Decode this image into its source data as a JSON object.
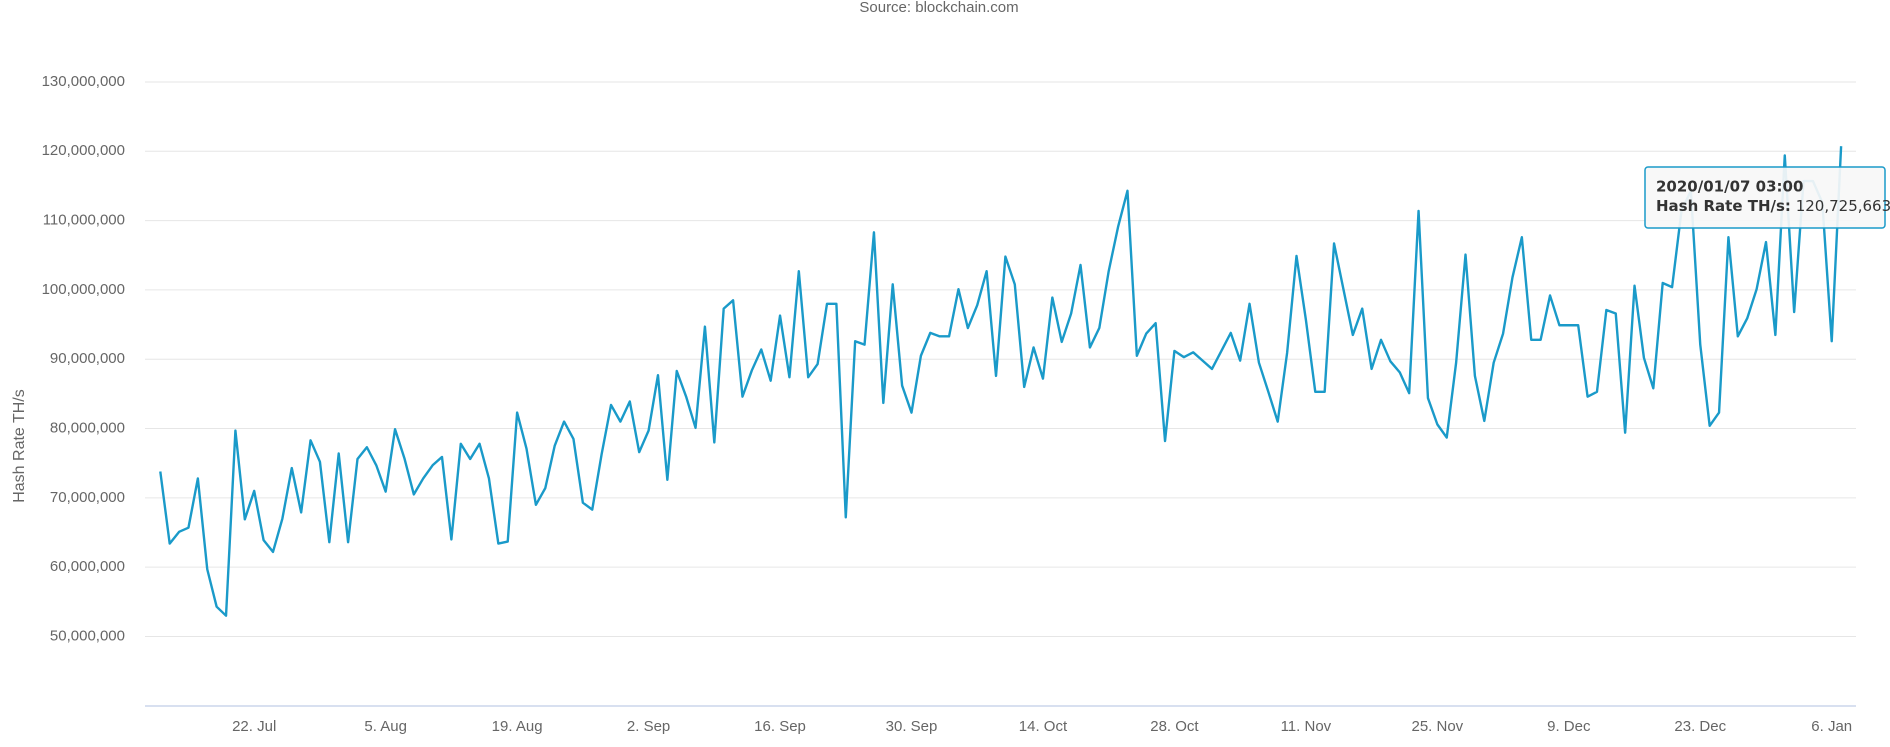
{
  "chart_data": {
    "type": "line",
    "subtitle": "Source: blockchain.com",
    "y_label": "Hash Rate TH/s",
    "color": "#1a9ac9",
    "grid": true,
    "ylim": [
      40000000,
      135000000
    ],
    "yticks": [
      {
        "value": 50000000,
        "label": "50,000,000"
      },
      {
        "value": 60000000,
        "label": "60,000,000"
      },
      {
        "value": 70000000,
        "label": "70,000,000"
      },
      {
        "value": 80000000,
        "label": "80,000,000"
      },
      {
        "value": 90000000,
        "label": "90,000,000"
      },
      {
        "value": 100000000,
        "label": "100,000,000"
      },
      {
        "value": 110000000,
        "label": "110,000,000"
      },
      {
        "value": 120000000,
        "label": "120,000,000"
      },
      {
        "value": 130000000,
        "label": "130,000,000"
      }
    ],
    "categories": [
      null,
      null,
      null,
      null,
      null,
      null,
      null,
      null,
      null,
      null,
      "22. Jul",
      null,
      null,
      null,
      null,
      null,
      null,
      null,
      null,
      null,
      null,
      null,
      null,
      null,
      "5. Aug",
      null,
      null,
      null,
      null,
      null,
      null,
      null,
      null,
      null,
      null,
      null,
      null,
      null,
      "19. Aug",
      null,
      null,
      null,
      null,
      null,
      null,
      null,
      null,
      null,
      null,
      null,
      null,
      null,
      "2. Sep",
      null,
      null,
      null,
      null,
      null,
      null,
      null,
      null,
      null,
      null,
      null,
      null,
      null,
      "16. Sep",
      null,
      null,
      null,
      null,
      null,
      null,
      null,
      null,
      null,
      null,
      null,
      null,
      null,
      "30. Sep",
      null,
      null,
      null,
      null,
      null,
      null,
      null,
      null,
      null,
      null,
      null,
      null,
      null,
      "14. Oct",
      null,
      null,
      null,
      null,
      null,
      null,
      null,
      null,
      null,
      null,
      null,
      null,
      null,
      "28. Oct",
      null,
      null,
      null,
      null,
      null,
      null,
      null,
      null,
      null,
      null,
      null,
      null,
      null,
      "11. Nov",
      null,
      null,
      null,
      null,
      null,
      null,
      null,
      null,
      null,
      null,
      null,
      null,
      null,
      "25. Nov",
      null,
      null,
      null,
      null,
      null,
      null,
      null,
      null,
      null,
      null,
      null,
      null,
      null,
      "9. Dec",
      null,
      null,
      null,
      null,
      null,
      null,
      null,
      null,
      null,
      null,
      null,
      null,
      null,
      "23. Dec",
      null,
      null,
      null,
      null,
      null,
      null,
      null,
      null,
      null,
      null,
      null,
      null,
      null,
      "6. Jan",
      null
    ],
    "values": [
      73800000,
      63400000,
      65100000,
      65700000,
      72800000,
      59700000,
      54300000,
      53000000,
      79700000,
      66900000,
      71000000,
      63900000,
      62200000,
      67000000,
      74300000,
      67900000,
      78300000,
      75200000,
      63600000,
      76400000,
      63600000,
      75600000,
      77300000,
      74700000,
      70900000,
      79900000,
      75700000,
      70500000,
      72800000,
      74700000,
      75900000,
      64000000,
      77800000,
      75600000,
      77800000,
      72800000,
      63400000,
      63700000,
      82300000,
      77100000,
      69000000,
      71400000,
      77500000,
      81000000,
      78500000,
      69300000,
      68300000,
      76300000,
      83400000,
      81000000,
      83900000,
      76600000,
      79700000,
      87700000,
      72600000,
      88300000,
      84600000,
      80100000,
      94700000,
      78000000,
      97300000,
      98500000,
      84600000,
      88400000,
      91400000,
      86900000,
      96300000,
      87400000,
      102700000,
      87400000,
      89300000,
      98000000,
      98000000,
      67200000,
      92600000,
      92100000,
      108300000,
      83700000,
      100800000,
      86200000,
      82300000,
      90500000,
      93800000,
      93300000,
      93300000,
      100100000,
      94500000,
      97800000,
      102700000,
      87600000,
      104800000,
      100800000,
      86000000,
      91700000,
      87200000,
      98900000,
      92500000,
      96600000,
      103600000,
      91700000,
      94500000,
      102700000,
      109100000,
      114300000,
      90500000,
      93700000,
      95200000,
      78200000,
      91200000,
      90300000,
      91000000,
      89800000,
      88600000,
      91200000,
      93800000,
      89800000,
      98000000,
      89500000,
      85300000,
      81000000,
      90900000,
      104900000,
      95700000,
      85300000,
      85300000,
      106700000,
      100100000,
      93500000,
      97300000,
      88600000,
      92800000,
      89700000,
      88100000,
      85100000,
      111400000,
      84400000,
      80600000,
      78700000,
      89500000,
      105100000,
      87600000,
      81100000,
      89500000,
      93700000,
      101800000,
      107600000,
      92800000,
      92800000,
      99200000,
      94900000,
      94900000,
      94900000,
      84600000,
      85300000,
      97100000,
      96600000,
      79400000,
      100600000,
      90200000,
      85800000,
      101000000,
      100400000,
      111400000,
      114300000,
      92100000,
      80400000,
      82300000,
      107600000,
      93300000,
      95900000,
      100100000,
      106900000,
      93500000,
      119400000,
      96800000,
      115700000,
      115700000,
      112600000,
      92600000,
      120725663
    ],
    "tooltip": {
      "title": "2020/01/07 03:00",
      "label": "Hash Rate TH/s:",
      "value_label": "120,725,663"
    }
  }
}
